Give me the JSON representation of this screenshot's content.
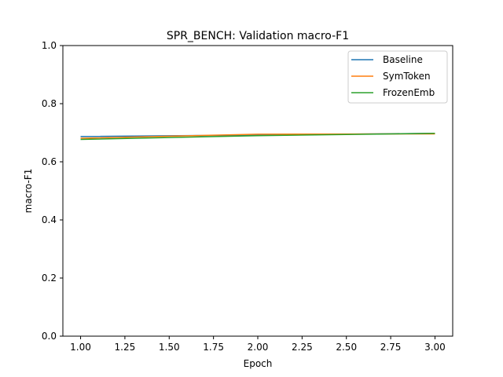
{
  "chart_data": {
    "type": "line",
    "title": "SPR_BENCH: Validation macro-F1",
    "xlabel": "Epoch",
    "ylabel": "macro-F1",
    "xlim": [
      0.9,
      3.1
    ],
    "ylim": [
      0.0,
      1.0
    ],
    "x_ticks": [
      "1.00",
      "1.25",
      "1.50",
      "1.75",
      "2.00",
      "2.25",
      "2.50",
      "2.75",
      "3.00"
    ],
    "y_ticks": [
      "0.0",
      "0.2",
      "0.4",
      "0.6",
      "0.8",
      "1.0"
    ],
    "grid": false,
    "legend_position": "top-right",
    "x": [
      1,
      2,
      3
    ],
    "series": [
      {
        "name": "Baseline",
        "color": "#1f77b4",
        "values": [
          0.687,
          0.692,
          0.698
        ]
      },
      {
        "name": "SymToken",
        "color": "#ff7f0e",
        "values": [
          0.681,
          0.695,
          0.696
        ]
      },
      {
        "name": "FrozenEmb",
        "color": "#2ca02c",
        "values": [
          0.677,
          0.69,
          0.698
        ]
      }
    ]
  }
}
